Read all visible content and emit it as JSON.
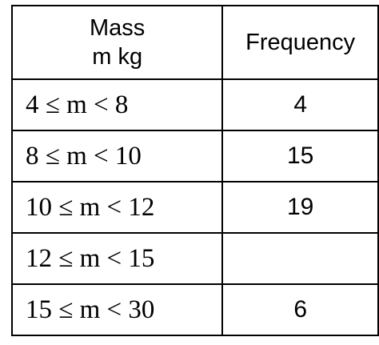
{
  "table": {
    "header": {
      "mass": [
        "Mass",
        "m kg"
      ],
      "frequency": "Frequency"
    },
    "rows": [
      [
        "4 ≤ m < 8",
        4
      ],
      [
        "8 ≤ m < 10",
        15
      ],
      [
        "10 ≤ m < 12",
        19
      ],
      [
        "12 ≤ m < 15",
        null
      ],
      [
        "15 ≤ m < 30",
        6
      ]
    ]
  }
}
